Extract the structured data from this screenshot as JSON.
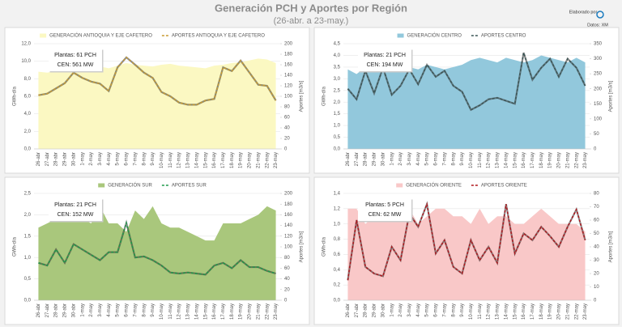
{
  "header": {
    "title": "Generación PCH y Aportes por Región",
    "subtitle": "(26-abr. a 23-may.)",
    "credit": "Elaborado por",
    "source": "Datos: XM"
  },
  "chart_data": [
    {
      "type": "combo",
      "y_label": "GWh-día",
      "y2_label": "Aportes [m3/s]",
      "annotation": [
        "Plantas: 61 PCH",
        "CEN: 561 MW"
      ],
      "categories": [
        "26-abr",
        "27-abr",
        "28-abr",
        "29-abr",
        "30-abr",
        "1-may",
        "2-may",
        "3-may",
        "4-may",
        "5-may",
        "6-may",
        "7-may",
        "8-may",
        "9-may",
        "10-may",
        "11-may",
        "12-may",
        "13-may",
        "14-may",
        "15-may",
        "16-may",
        "17-may",
        "18-may",
        "19-may",
        "20-may",
        "21-may",
        "22-may",
        "23-may"
      ],
      "series": [
        {
          "name": "GENERACIÓN ANTIOQUIA Y EJE CAFETERO",
          "kind": "area",
          "color": "#fbf8c2",
          "values": [
            8.8,
            8.7,
            8.9,
            9.3,
            9.6,
            9.5,
            9.3,
            9.4,
            9.2,
            9.5,
            9.8,
            9.6,
            9.5,
            9.4,
            9.6,
            9.7,
            9.5,
            9.4,
            9.3,
            9.2,
            9.5,
            9.6,
            9.8,
            9.9,
            10.1,
            10.3,
            10.2,
            9.8
          ]
        },
        {
          "name": "APORTES ANTIOQUIA Y EJE CAFETERO",
          "kind": "line",
          "axis": "y2",
          "color": "#c89a30",
          "values": [
            102,
            105,
            115,
            125,
            145,
            135,
            128,
            124,
            110,
            155,
            174,
            160,
            145,
            135,
            108,
            100,
            88,
            84,
            84,
            92,
            95,
            155,
            148,
            168,
            145,
            122,
            120,
            92
          ]
        }
      ],
      "ylim": [
        0,
        12
      ],
      "yticks": [
        {
          "value": 0,
          "label": "0,0"
        },
        {
          "value": 2,
          "label": "2,0"
        },
        {
          "value": 4,
          "label": "4,0"
        },
        {
          "value": 6,
          "label": "6,0"
        },
        {
          "value": 8,
          "label": "8,0"
        },
        {
          "value": 10,
          "label": "10,0"
        },
        {
          "value": 12,
          "label": "12,0"
        }
      ],
      "y2lim": [
        0,
        200
      ],
      "y2ticks": [
        0,
        20,
        40,
        60,
        80,
        100,
        120,
        140,
        160,
        180,
        200
      ]
    },
    {
      "type": "combo",
      "y_label": "GWh-día",
      "y2_label": "Aportes [m3/s]",
      "annotation": [
        "Plantas: 21 PCH",
        "CEN: 194 MW"
      ],
      "categories": [
        "26-abr",
        "27-abr",
        "28-abr",
        "29-abr",
        "30-abr",
        "1-may",
        "2-may",
        "3-may",
        "4-may",
        "5-may",
        "6-may",
        "7-may",
        "8-may",
        "9-may",
        "10-may",
        "11-may",
        "12-may",
        "13-may",
        "14-may",
        "15-may",
        "16-may",
        "17-may",
        "18-may",
        "19-may",
        "20-may",
        "21-may",
        "22-may",
        "23-may"
      ],
      "series": [
        {
          "name": "GENERACIÓN CENTRO",
          "kind": "area",
          "color": "#92c8dc",
          "values": [
            3.4,
            3.2,
            3.5,
            3.6,
            3.3,
            3.5,
            3.6,
            3.5,
            3.4,
            3.6,
            3.5,
            3.4,
            3.5,
            3.6,
            3.8,
            3.9,
            3.8,
            3.7,
            3.9,
            3.8,
            3.7,
            3.8,
            4.0,
            3.9,
            3.8,
            3.7,
            3.9,
            3.7
          ]
        },
        {
          "name": "APORTES CENTRO",
          "kind": "line",
          "axis": "y2",
          "color": "#3b5656",
          "values": [
            200,
            165,
            260,
            185,
            270,
            180,
            210,
            265,
            215,
            280,
            240,
            260,
            210,
            190,
            130,
            145,
            165,
            170,
            160,
            150,
            320,
            230,
            270,
            300,
            240,
            300,
            270,
            210
          ]
        }
      ],
      "ylim": [
        0,
        4.5
      ],
      "yticks": [
        {
          "value": 0,
          "label": "0,0"
        },
        {
          "value": 0.5,
          "label": "0,5"
        },
        {
          "value": 1,
          "label": "1,0"
        },
        {
          "value": 1.5,
          "label": "1,5"
        },
        {
          "value": 2,
          "label": "2,0"
        },
        {
          "value": 2.5,
          "label": "2,5"
        },
        {
          "value": 3,
          "label": "3,0"
        },
        {
          "value": 3.5,
          "label": "3,5"
        },
        {
          "value": 4,
          "label": "4,0"
        },
        {
          "value": 4.5,
          "label": "4,5"
        }
      ],
      "y2lim": [
        0,
        350
      ],
      "y2ticks": [
        0,
        50,
        100,
        150,
        200,
        250,
        300,
        350
      ]
    },
    {
      "type": "combo",
      "y_label": "GWh-día",
      "y2_label": "Aportes [m3/s]",
      "annotation": [
        "Plantas: 21 PCH",
        "CEN: 152 MW"
      ],
      "categories": [
        "26-abr",
        "27-abr",
        "28-abr",
        "29-abr",
        "30-abr",
        "1-may",
        "2-may",
        "3-may",
        "4-may",
        "5-may",
        "6-may",
        "7-may",
        "8-may",
        "9-may",
        "10-may",
        "11-may",
        "12-may",
        "13-may",
        "14-may",
        "15-may",
        "16-may",
        "17-may",
        "18-may",
        "19-may",
        "20-may",
        "21-may",
        "22-may",
        "23-may"
      ],
      "series": [
        {
          "name": "GENERACIÓN SUR",
          "kind": "area",
          "color": "#a9c77c",
          "values": [
            1.7,
            1.8,
            1.9,
            1.9,
            2.0,
            1.9,
            1.8,
            2.2,
            1.8,
            1.8,
            1.6,
            2.1,
            1.9,
            2.2,
            1.8,
            1.7,
            1.7,
            1.6,
            1.5,
            1.4,
            1.4,
            1.8,
            1.8,
            1.8,
            1.9,
            2.0,
            2.2,
            2.1
          ]
        },
        {
          "name": "APORTES SUR",
          "kind": "line",
          "axis": "y2",
          "color": "#1d9a4a",
          "values": [
            70,
            65,
            95,
            70,
            105,
            95,
            85,
            75,
            90,
            90,
            145,
            80,
            82,
            75,
            65,
            52,
            50,
            52,
            50,
            48,
            65,
            70,
            60,
            75,
            62,
            62,
            55,
            50
          ]
        }
      ],
      "ylim": [
        0,
        2.5
      ],
      "yticks": [
        {
          "value": 0,
          "label": "0,0"
        },
        {
          "value": 0.5,
          "label": "0,5"
        },
        {
          "value": 1,
          "label": "1,0"
        },
        {
          "value": 1.5,
          "label": "1,5"
        },
        {
          "value": 2,
          "label": "2,0"
        },
        {
          "value": 2.5,
          "label": "2,5"
        }
      ],
      "y2lim": [
        0,
        200
      ],
      "y2ticks": [
        0,
        20,
        40,
        60,
        80,
        100,
        120,
        140,
        160,
        180,
        200
      ]
    },
    {
      "type": "combo",
      "y_label": "GWh-día",
      "y2_label": "Aportes [m3/s]",
      "annotation": [
        "Plantas: 5 PCH",
        "CEN: 62 MW"
      ],
      "categories": [
        "26-abr",
        "27-abr",
        "28-abr",
        "29-abr",
        "30-abr",
        "1-may",
        "2-may",
        "3-may",
        "4-may",
        "5-may",
        "6-may",
        "7-may",
        "8-may",
        "9-may",
        "10-may",
        "11-may",
        "12-may",
        "13-may",
        "14-may",
        "15-may",
        "16-may",
        "17-may",
        "18-may",
        "19-may",
        "20-may",
        "21-may",
        "22-may",
        "23-may"
      ],
      "series": [
        {
          "name": "GENERACIÓN ORIENTE",
          "kind": "area",
          "color": "#f9c8c8",
          "values": [
            1.2,
            1.2,
            1.0,
            1.1,
            1.2,
            1.1,
            1.2,
            1.2,
            1.0,
            1.1,
            1.2,
            1.2,
            1.1,
            1.1,
            1.0,
            1.2,
            1.0,
            1.1,
            1.1,
            1.0,
            1.0,
            1.1,
            1.2,
            1.1,
            1.0,
            1.0,
            1.0,
            0.9
          ]
        },
        {
          "name": "APORTES ORIENTE",
          "kind": "line",
          "axis": "y2",
          "color": "#b0161c",
          "values": [
            15,
            60,
            25,
            20,
            18,
            40,
            30,
            65,
            55,
            72,
            35,
            45,
            25,
            20,
            45,
            30,
            40,
            28,
            72,
            35,
            50,
            45,
            55,
            48,
            40,
            55,
            68,
            45
          ]
        }
      ],
      "ylim": [
        0,
        1.4
      ],
      "yticks": [
        {
          "value": 0,
          "label": "0,0"
        },
        {
          "value": 0.2,
          "label": "0,2"
        },
        {
          "value": 0.4,
          "label": "0,4"
        },
        {
          "value": 0.6,
          "label": "0,6"
        },
        {
          "value": 0.8,
          "label": "0,8"
        },
        {
          "value": 1,
          "label": "1,0"
        },
        {
          "value": 1.2,
          "label": "1,2"
        },
        {
          "value": 1.4,
          "label": "1,4"
        }
      ],
      "y2lim": [
        0,
        80
      ],
      "y2ticks": [
        0,
        10,
        20,
        30,
        40,
        50,
        60,
        70,
        80
      ]
    }
  ]
}
